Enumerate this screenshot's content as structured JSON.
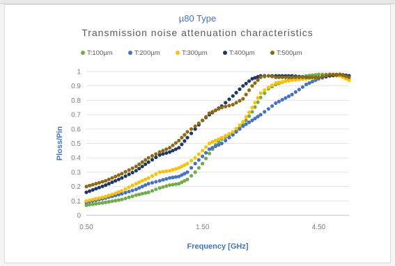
{
  "chart_data": {
    "type": "scatter",
    "title": "µ80 Type",
    "subtitle": "Transmission noise attenuation characteristics",
    "xlabel": "Frequency [GHz]",
    "ylabel": "Ploss/Pin",
    "xscale": "log",
    "xlim": [
      0.5,
      6.0
    ],
    "ylim": [
      0,
      1
    ],
    "x_ticks": [
      0.5,
      1.5,
      4.5
    ],
    "x_tick_labels": [
      "0.50",
      "1.50",
      "4.50"
    ],
    "y_ticks": [
      0,
      0.1,
      0.2,
      0.3,
      0.4,
      0.5,
      0.6,
      0.7,
      0.8,
      0.9,
      1
    ],
    "y_tick_labels": [
      "0",
      "0.1",
      "0.2",
      "0.3",
      "0.4",
      "0.5",
      "0.6",
      "0.7",
      "0.8",
      "0.9",
      "1"
    ],
    "grid": "horizontal",
    "legend_position": "top",
    "series": [
      {
        "name": "T:100µm",
        "color": "#70ad47",
        "points": [
          [
            0.5,
            0.07
          ],
          [
            0.6,
            0.09
          ],
          [
            0.7,
            0.11
          ],
          [
            0.8,
            0.14
          ],
          [
            0.9,
            0.16
          ],
          [
            1.0,
            0.19
          ],
          [
            1.1,
            0.21
          ],
          [
            1.2,
            0.22
          ],
          [
            1.3,
            0.25
          ],
          [
            1.4,
            0.3
          ],
          [
            1.5,
            0.36
          ],
          [
            1.6,
            0.43
          ],
          [
            1.7,
            0.49
          ],
          [
            1.8,
            0.53
          ],
          [
            2.0,
            0.57
          ],
          [
            2.2,
            0.63
          ],
          [
            2.4,
            0.72
          ],
          [
            2.6,
            0.82
          ],
          [
            2.8,
            0.88
          ],
          [
            3.0,
            0.91
          ],
          [
            3.5,
            0.95
          ],
          [
            4.0,
            0.97
          ],
          [
            4.5,
            0.98
          ],
          [
            5.0,
            0.98
          ],
          [
            5.6,
            0.97
          ],
          [
            6.0,
            0.96
          ]
        ]
      },
      {
        "name": "T:200µm",
        "color": "#4472c4",
        "points": [
          [
            0.5,
            0.09
          ],
          [
            0.6,
            0.12
          ],
          [
            0.7,
            0.15
          ],
          [
            0.8,
            0.18
          ],
          [
            0.9,
            0.22
          ],
          [
            1.0,
            0.24
          ],
          [
            1.1,
            0.26
          ],
          [
            1.2,
            0.27
          ],
          [
            1.3,
            0.3
          ],
          [
            1.4,
            0.36
          ],
          [
            1.5,
            0.41
          ],
          [
            1.6,
            0.46
          ],
          [
            1.8,
            0.5
          ],
          [
            2.0,
            0.56
          ],
          [
            2.2,
            0.62
          ],
          [
            2.4,
            0.66
          ],
          [
            2.6,
            0.7
          ],
          [
            2.8,
            0.74
          ],
          [
            3.0,
            0.78
          ],
          [
            3.5,
            0.84
          ],
          [
            4.0,
            0.91
          ],
          [
            4.5,
            0.95
          ],
          [
            5.0,
            0.97
          ],
          [
            5.5,
            0.98
          ],
          [
            6.0,
            0.97
          ]
        ]
      },
      {
        "name": "T:300µm",
        "color": "#ffc000",
        "points": [
          [
            0.5,
            0.1
          ],
          [
            0.6,
            0.13
          ],
          [
            0.7,
            0.17
          ],
          [
            0.8,
            0.22
          ],
          [
            0.9,
            0.26
          ],
          [
            1.0,
            0.3
          ],
          [
            1.1,
            0.31
          ],
          [
            1.2,
            0.33
          ],
          [
            1.3,
            0.36
          ],
          [
            1.4,
            0.4
          ],
          [
            1.5,
            0.45
          ],
          [
            1.6,
            0.5
          ],
          [
            1.8,
            0.54
          ],
          [
            2.0,
            0.58
          ],
          [
            2.2,
            0.65
          ],
          [
            2.4,
            0.75
          ],
          [
            2.6,
            0.85
          ],
          [
            2.8,
            0.89
          ],
          [
            3.0,
            0.92
          ],
          [
            3.5,
            0.94
          ],
          [
            4.0,
            0.95
          ],
          [
            4.5,
            0.96
          ],
          [
            5.0,
            0.97
          ],
          [
            5.5,
            0.97
          ],
          [
            6.0,
            0.94
          ]
        ]
      },
      {
        "name": "T:400µm",
        "color": "#203864",
        "points": [
          [
            0.5,
            0.16
          ],
          [
            0.6,
            0.21
          ],
          [
            0.7,
            0.26
          ],
          [
            0.8,
            0.31
          ],
          [
            0.9,
            0.37
          ],
          [
            1.0,
            0.42
          ],
          [
            1.1,
            0.44
          ],
          [
            1.2,
            0.47
          ],
          [
            1.3,
            0.54
          ],
          [
            1.4,
            0.6
          ],
          [
            1.5,
            0.66
          ],
          [
            1.6,
            0.7
          ],
          [
            1.8,
            0.76
          ],
          [
            2.0,
            0.83
          ],
          [
            2.2,
            0.9
          ],
          [
            2.4,
            0.95
          ],
          [
            2.6,
            0.97
          ],
          [
            2.8,
            0.97
          ],
          [
            3.0,
            0.97
          ],
          [
            3.5,
            0.97
          ],
          [
            4.0,
            0.96
          ],
          [
            4.5,
            0.96
          ],
          [
            5.0,
            0.97
          ],
          [
            5.5,
            0.98
          ],
          [
            6.0,
            0.97
          ]
        ]
      },
      {
        "name": "T:500µm",
        "color": "#8b6a12",
        "points": [
          [
            0.5,
            0.2
          ],
          [
            0.6,
            0.24
          ],
          [
            0.7,
            0.29
          ],
          [
            0.8,
            0.34
          ],
          [
            0.9,
            0.4
          ],
          [
            1.0,
            0.44
          ],
          [
            1.1,
            0.47
          ],
          [
            1.2,
            0.52
          ],
          [
            1.3,
            0.58
          ],
          [
            1.4,
            0.62
          ],
          [
            1.5,
            0.66
          ],
          [
            1.6,
            0.71
          ],
          [
            1.8,
            0.75
          ],
          [
            2.0,
            0.77
          ],
          [
            2.2,
            0.81
          ],
          [
            2.4,
            0.9
          ],
          [
            2.6,
            0.96
          ],
          [
            2.8,
            0.97
          ],
          [
            3.0,
            0.96
          ],
          [
            3.5,
            0.96
          ],
          [
            4.0,
            0.96
          ],
          [
            4.5,
            0.96
          ],
          [
            5.0,
            0.98
          ],
          [
            5.5,
            0.98
          ],
          [
            6.0,
            0.96
          ]
        ]
      }
    ]
  }
}
